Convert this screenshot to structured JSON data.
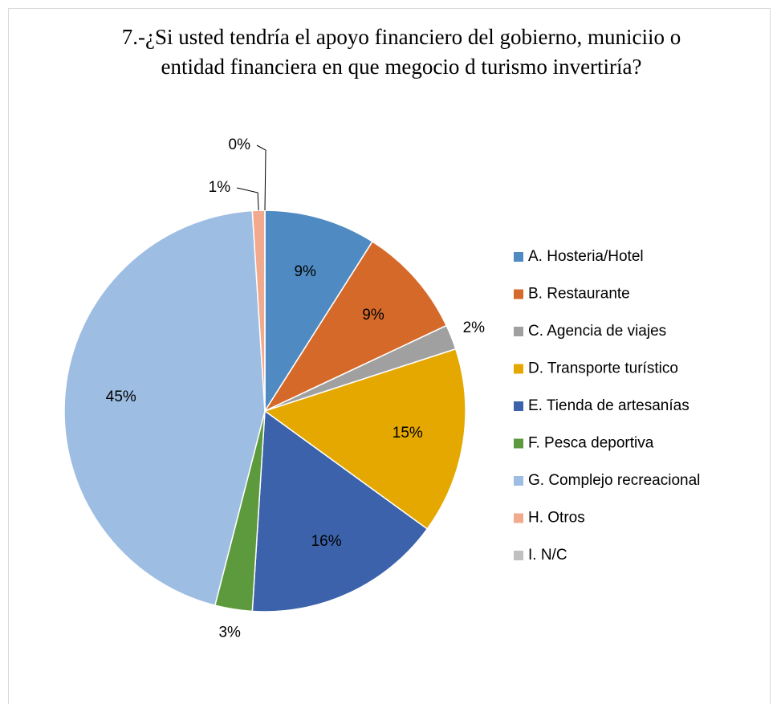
{
  "chart_data": {
    "type": "pie",
    "title": "7.-¿Si usted tendría el apoyo financiero del gobierno, municiio o entidad financiera en que megocio d turismo invertiría?",
    "categories": [
      "A. Hosteria/Hotel",
      "B. Restaurante",
      "C. Agencia de viajes",
      "D. Transporte turístico",
      "E. Tienda de artesanías",
      "F. Pesca deportiva",
      "G. Complejo recreacional",
      "H. Otros",
      "I. N/C"
    ],
    "values": [
      9,
      9,
      2,
      15,
      16,
      3,
      45,
      1,
      0
    ],
    "value_labels": [
      "9%",
      "9%",
      "2%",
      "15%",
      "16%",
      "3%",
      "45%",
      "1%",
      "0%"
    ],
    "colors": [
      "#4f8bc2",
      "#d5692a",
      "#a0a0a0",
      "#e5a800",
      "#3b62aa",
      "#5d9a3d",
      "#9dbde2",
      "#f2aa8f",
      "#c0c0c0"
    ],
    "legend": "right"
  }
}
